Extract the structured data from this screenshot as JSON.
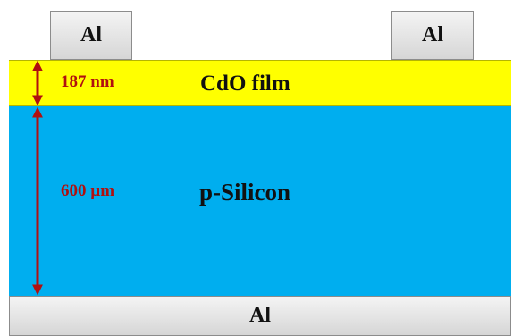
{
  "colors": {
    "cdo_film": "#ffff00",
    "p_silicon": "#00aeef",
    "aluminum": "#d9d9d9",
    "arrow": "#b01010"
  },
  "contacts": {
    "top_left": "Al",
    "top_right": "Al",
    "bottom": "Al"
  },
  "layers": {
    "cdo": {
      "label": "CdO film",
      "thickness": "187 nm"
    },
    "silicon": {
      "label": "p-Silicon",
      "thickness": "600 µm"
    }
  }
}
